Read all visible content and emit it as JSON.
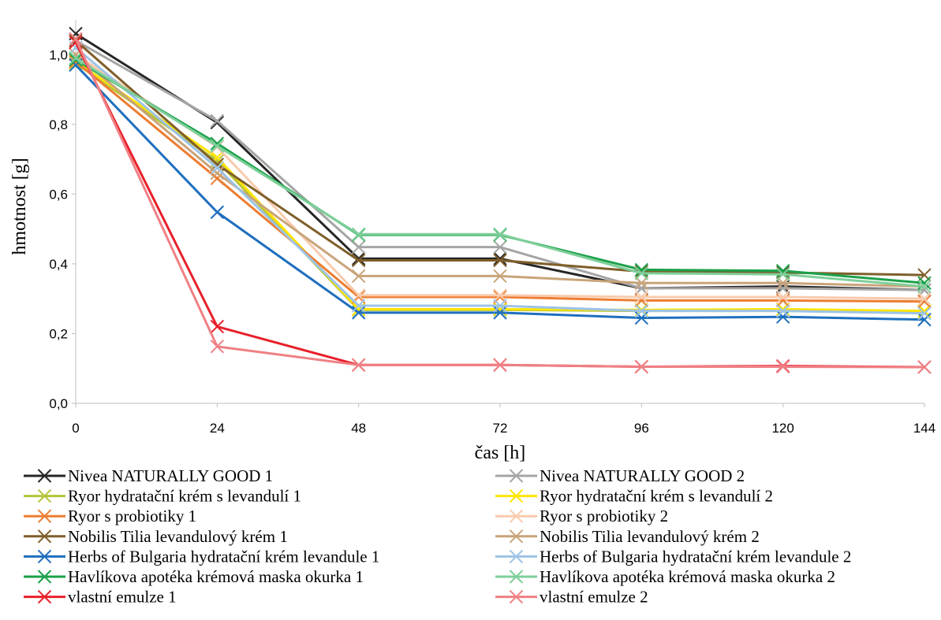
{
  "chart_data": {
    "type": "line",
    "xlabel": "čas [h]",
    "ylabel": "hmotnost [g]",
    "x": [
      0,
      24,
      48,
      72,
      96,
      120,
      144
    ],
    "x_tick_labels": [
      "0",
      "24",
      "48",
      "72",
      "96",
      "120",
      "144"
    ],
    "ylim": [
      0,
      1.1
    ],
    "y_ticks": [
      0,
      0.2,
      0.4,
      0.6,
      0.8,
      1.0
    ],
    "y_tick_labels": [
      "0,0",
      "0,2",
      "0,4",
      "0,6",
      "0,8",
      "1,0"
    ],
    "grid": false,
    "legend_position": "bottom, two columns",
    "marker": "x-cross",
    "series": [
      {
        "name": "Nivea NATURALLY GOOD 1",
        "color": "#262626",
        "values": [
          1.06,
          0.805,
          0.415,
          0.415,
          0.33,
          0.335,
          0.325
        ]
      },
      {
        "name": "Nivea NATURALLY GOOD 2",
        "color": "#a5a5a5",
        "values": [
          1.04,
          0.81,
          0.448,
          0.448,
          0.33,
          0.33,
          0.325
        ]
      },
      {
        "name": "Ryor hydratační krém s levandulí 1",
        "color": "#b4c43a",
        "values": [
          0.975,
          0.695,
          0.268,
          0.268,
          0.265,
          0.265,
          0.262
        ]
      },
      {
        "name": "Ryor hydratační krém s levandulí 2",
        "color": "#ffe500",
        "values": [
          0.98,
          0.705,
          0.27,
          0.27,
          0.268,
          0.27,
          0.265
        ]
      },
      {
        "name": "Ryor s probiotiky 1",
        "color": "#ed7d31",
        "values": [
          0.98,
          0.645,
          0.305,
          0.305,
          0.295,
          0.295,
          0.292
        ]
      },
      {
        "name": "Ryor s probiotiky 2",
        "color": "#f8cbad",
        "values": [
          1.0,
          0.735,
          0.31,
          0.31,
          0.305,
          0.305,
          0.3
        ]
      },
      {
        "name": "Nobilis Tilia levandulový krém 1",
        "color": "#7f5f2a",
        "values": [
          1.04,
          0.685,
          0.41,
          0.41,
          0.378,
          0.375,
          0.368
        ]
      },
      {
        "name": "Nobilis Tilia levandulový krém 2",
        "color": "#c9a47a",
        "values": [
          1.0,
          0.66,
          0.365,
          0.365,
          0.345,
          0.345,
          0.335
        ]
      },
      {
        "name": "Herbs of Bulgaria hydratační krém levandule 1",
        "color": "#1f6fbe",
        "values": [
          0.97,
          0.548,
          0.26,
          0.26,
          0.245,
          0.248,
          0.24
        ]
      },
      {
        "name": "Herbs of Bulgaria hydratační krém levandule 2",
        "color": "#9dc3e6",
        "values": [
          1.02,
          0.675,
          0.28,
          0.28,
          0.265,
          0.265,
          0.258
        ]
      },
      {
        "name": "Havlíkova apotéka krémová maska okurka 1",
        "color": "#1ba14a",
        "values": [
          0.985,
          0.745,
          0.483,
          0.483,
          0.383,
          0.38,
          0.345
        ]
      },
      {
        "name": "Havlíkova apotéka krémová maska okurka 2",
        "color": "#7fcf9a",
        "values": [
          0.99,
          0.738,
          0.485,
          0.485,
          0.373,
          0.37,
          0.335
        ]
      },
      {
        "name": "vlastní emulze 1",
        "color": "#e8202a",
        "values": [
          1.035,
          0.22,
          0.11,
          0.11,
          0.105,
          0.107,
          0.104
        ]
      },
      {
        "name": "vlastní emulze 2",
        "color": "#ef8084",
        "values": [
          1.045,
          0.163,
          0.11,
          0.11,
          0.105,
          0.105,
          0.104
        ]
      }
    ]
  }
}
